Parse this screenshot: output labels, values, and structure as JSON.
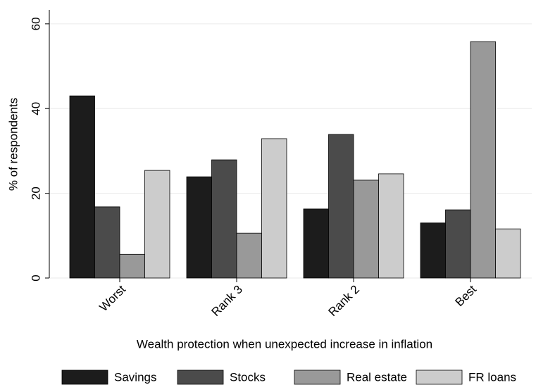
{
  "chart_data": {
    "type": "bar",
    "x_label": "Wealth protection when unexpected increase in inflation",
    "y_label": "% of respondents",
    "categories": [
      "Worst",
      "Rank 3",
      "Rank 2",
      "Best"
    ],
    "series": [
      {
        "name": "Savings",
        "color": "#1c1c1c",
        "values": [
          43.0,
          23.9,
          16.3,
          13.0
        ]
      },
      {
        "name": "Stocks",
        "color": "#4b4b4b",
        "values": [
          16.8,
          27.9,
          33.9,
          16.1
        ]
      },
      {
        "name": "Real estate",
        "color": "#999999",
        "values": [
          5.6,
          10.6,
          23.1,
          55.8
        ]
      },
      {
        "name": "FR loans",
        "color": "#cccccc",
        "values": [
          25.4,
          32.9,
          24.6,
          11.6
        ]
      }
    ],
    "ylim": [
      0,
      63.3
    ],
    "yticks": [
      0,
      20,
      40,
      60
    ],
    "grid": true
  }
}
